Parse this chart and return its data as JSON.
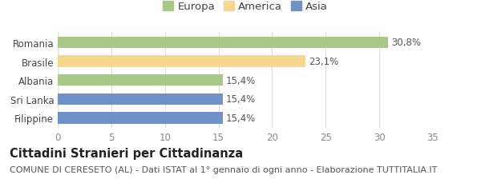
{
  "categories": [
    "Romania",
    "Brasile",
    "Albania",
    "Sri Lanka",
    "Filippine"
  ],
  "values": [
    30.8,
    23.1,
    15.4,
    15.4,
    15.4
  ],
  "labels": [
    "30,8%",
    "23,1%",
    "15,4%",
    "15,4%",
    "15,4%"
  ],
  "bar_colors": [
    "#a8c888",
    "#f5d78e",
    "#a8c888",
    "#7090c8",
    "#7090c8"
  ],
  "legend_items": [
    {
      "label": "Europa",
      "color": "#a8c888"
    },
    {
      "label": "America",
      "color": "#f5d78e"
    },
    {
      "label": "Asia",
      "color": "#7090c8"
    }
  ],
  "xlim": [
    0,
    35
  ],
  "xticks": [
    0,
    5,
    10,
    15,
    20,
    25,
    30,
    35
  ],
  "title": "Cittadini Stranieri per Cittadinanza",
  "subtitle": "COMUNE DI CERESETO (AL) - Dati ISTAT al 1° gennaio di ogni anno - Elaborazione TUTTITALIA.IT",
  "background_color": "#ffffff",
  "grid_color": "#dddddd",
  "bar_height": 0.6,
  "label_fontsize": 8.5,
  "tick_fontsize": 8.5,
  "ytick_fontsize": 8.5,
  "title_fontsize": 10.5,
  "subtitle_fontsize": 8,
  "legend_fontsize": 9.5
}
